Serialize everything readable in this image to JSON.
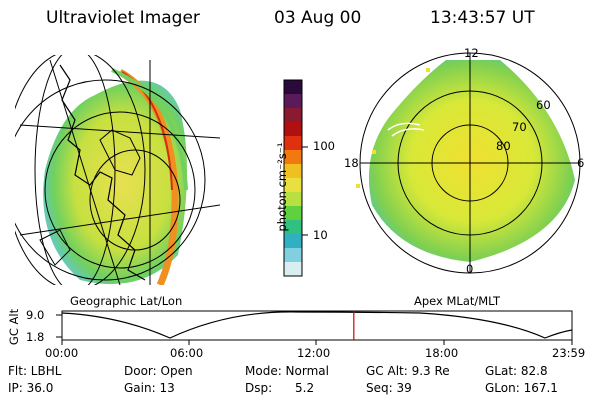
{
  "header": {
    "instrument": "Ultraviolet Imager",
    "date": "03 Aug 00",
    "time": "13:43:57 UT"
  },
  "panels": {
    "geo_label": "Geographic Lat/Lon",
    "apex_label": "Apex MLat/MLT",
    "polar_labels": {
      "noon": "12",
      "dusk": "18",
      "dawn": "6",
      "midnight": "0",
      "lat60": "60",
      "lat70": "70",
      "lat80": "80"
    }
  },
  "colorbar": {
    "unit_label": "photon cm⁻²s⁻¹",
    "ticks": [
      "100",
      "10"
    ],
    "colors": [
      "#2a0a3a",
      "#5b1a5a",
      "#8a1a30",
      "#b01010",
      "#e03010",
      "#f07a10",
      "#f0c020",
      "#e8e040",
      "#b8e040",
      "#60d040",
      "#30c080",
      "#30b0c0",
      "#80d0e0",
      "#d8eef0"
    ]
  },
  "altitude_plot": {
    "ylabel": "GC Alt",
    "y_ticks": [
      "9.0",
      "1.8"
    ],
    "x_ticks": [
      "00:00",
      "06:00",
      "12:00",
      "18:00",
      "23:59"
    ],
    "marker_time": "13:43:57",
    "line_color": "#000000",
    "marker_color": "#cc0000"
  },
  "info": {
    "row1": [
      "Flt: LBHL",
      "Door: Open",
      "Mode: Normal",
      "GC Alt: 9.3 Re",
      "GLat:  82.8"
    ],
    "row2": [
      "IP: 36.0",
      "Gain: 13",
      "Dsp:      5.2",
      "Seq: 39",
      "GLon: 167.1"
    ]
  }
}
